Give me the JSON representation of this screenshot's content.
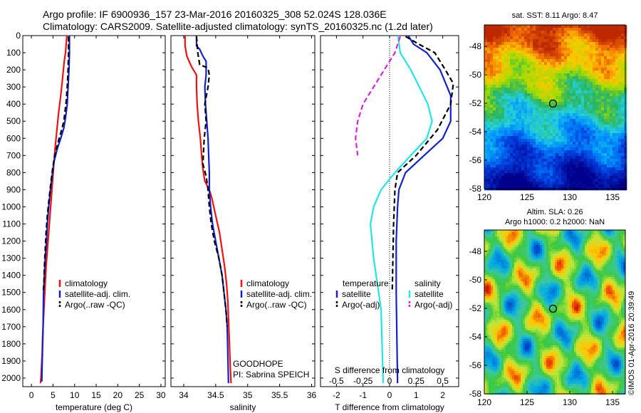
{
  "header": {
    "title_line1": "Argo profile: IF 6900936_157 23-Mar-2016 20160325_308 52.024S 128.036E",
    "title_line2": "Climatology: CARS2009. Satellite-adjusted climatology: synTS_20160325.nc (1.2d later)"
  },
  "colors": {
    "climatology": "#ee1111",
    "satellite": "#1122cc",
    "argo": "#000000",
    "sat_salinity": "#22e5e5",
    "argo_salinity": "#dd22dd"
  },
  "chart_data": [
    {
      "type": "line",
      "panel": "temperature",
      "xlabel": "temperature (deg C)",
      "ylabel": "",
      "xlim": [
        -2,
        31
      ],
      "ylim": [
        2050,
        0
      ],
      "xticks": [
        0,
        5,
        10,
        15,
        20,
        25,
        30
      ],
      "yticks": [
        0,
        100,
        200,
        300,
        400,
        500,
        600,
        700,
        800,
        900,
        1000,
        1100,
        1200,
        1300,
        1400,
        1500,
        1600,
        1700,
        1800,
        1900,
        2000
      ],
      "legend": [
        "climatology",
        "satellite-adj. clim.",
        "Argo(..raw -QC)"
      ],
      "legend_placement": "lower-right",
      "series": [
        {
          "name": "climatology",
          "style": "solid",
          "x": [
            8.2,
            7.9,
            7.6,
            7.2,
            6.8,
            6.3,
            5.9,
            5.5,
            5.2,
            4.9,
            4.6,
            4.3,
            4.0,
            3.7,
            3.4,
            3.2,
            3.0,
            2.8,
            2.6,
            2.5,
            2.4,
            2.3,
            2.2,
            2.1
          ],
          "y": [
            0,
            100,
            150,
            250,
            350,
            450,
            550,
            650,
            750,
            850,
            950,
            1050,
            1150,
            1250,
            1350,
            1450,
            1550,
            1650,
            1750,
            1850,
            1900,
            1950,
            2000,
            2030
          ]
        },
        {
          "name": "satellite",
          "style": "solid",
          "x": [
            8.8,
            8.8,
            8.7,
            8.5,
            8.3,
            7.9,
            7.5,
            6.8,
            6.0,
            5.2,
            4.8,
            4.4,
            4.0,
            3.7,
            3.5,
            3.2,
            3.0,
            2.8,
            2.7,
            2.5,
            2.4
          ],
          "y": [
            0,
            100,
            200,
            300,
            400,
            480,
            540,
            600,
            660,
            740,
            820,
            900,
            1000,
            1100,
            1200,
            1300,
            1400,
            1500,
            1700,
            1900,
            2020
          ]
        },
        {
          "name": "Argo",
          "style": "dashed",
          "x": [
            8.6,
            8.6,
            8.5,
            8.3,
            8.0,
            7.5,
            6.9,
            6.2,
            5.4,
            4.9,
            4.5,
            4.1,
            3.7,
            3.4,
            3.2,
            3.0,
            2.9,
            2.7
          ],
          "y": [
            5,
            100,
            200,
            300,
            400,
            500,
            560,
            620,
            700,
            780,
            860,
            950,
            1050,
            1150,
            1250,
            1350,
            1450,
            1500
          ]
        }
      ]
    },
    {
      "type": "line",
      "panel": "salinity",
      "xlabel": "salinity",
      "ylabel": "",
      "xlim": [
        33.8,
        36.05
      ],
      "ylim": [
        2050,
        0
      ],
      "xticks": [
        34,
        34.5,
        35,
        35.5,
        36
      ],
      "legend": [
        "climatology",
        "satellite-adj. clim.",
        "Argo(..raw -QC)"
      ],
      "legend_placement": "lower-right",
      "annotations": [
        "GOODHOPE",
        "PI: Sabrina SPEICH"
      ],
      "series": [
        {
          "name": "climatology",
          "style": "solid",
          "x": [
            34.02,
            34.02,
            34.05,
            34.12,
            34.2,
            34.2,
            34.21,
            34.23,
            34.26,
            34.28,
            34.3,
            34.33,
            34.4,
            34.44,
            34.5,
            34.56,
            34.6,
            34.64,
            34.67,
            34.69,
            34.7,
            34.71,
            34.72,
            34.73,
            34.74
          ],
          "y": [
            0,
            60,
            120,
            180,
            230,
            300,
            400,
            500,
            600,
            700,
            780,
            850,
            900,
            950,
            1050,
            1150,
            1250,
            1350,
            1450,
            1550,
            1650,
            1750,
            1850,
            1950,
            2030
          ]
        },
        {
          "name": "satellite",
          "style": "solid",
          "x": [
            34.2,
            34.2,
            34.25,
            34.3,
            34.35,
            34.35,
            34.33,
            34.34,
            34.36,
            34.38,
            34.39,
            34.4,
            34.4,
            34.42,
            34.45,
            34.5,
            34.55,
            34.6,
            34.63,
            34.66,
            34.68,
            34.7
          ],
          "y": [
            0,
            60,
            80,
            120,
            150,
            230,
            300,
            400,
            500,
            600,
            700,
            800,
            900,
            1000,
            1100,
            1200,
            1300,
            1400,
            1500,
            1600,
            1700,
            2030
          ]
        },
        {
          "name": "Argo",
          "style": "dashed",
          "x": [
            34.2,
            34.22,
            34.25,
            34.32,
            34.38,
            34.4,
            34.38,
            34.33,
            34.35,
            34.32,
            34.3,
            34.35,
            34.38,
            34.4,
            34.43,
            34.48,
            34.55,
            34.6,
            34.63,
            34.66,
            34.68
          ],
          "y": [
            5,
            100,
            170,
            180,
            190,
            230,
            300,
            400,
            500,
            600,
            750,
            820,
            900,
            1000,
            1100,
            1200,
            1300,
            1400,
            1500,
            1600,
            1700
          ]
        }
      ]
    },
    {
      "type": "line",
      "panel": "difference",
      "xlabel": "T difference from climatology",
      "xlabel_top": "S difference from climatology",
      "xlim": [
        -2.6,
        2.6
      ],
      "ylim": [
        2050,
        0
      ],
      "xticks": [
        -2,
        -1,
        0,
        1,
        2
      ],
      "xticks_s": [
        -0.5,
        -0.25,
        0,
        0.25,
        0.5
      ],
      "legend_temperature": [
        "temperature",
        "satellite",
        "Argo(-adj)"
      ],
      "legend_salinity": [
        "salinity",
        "satellite",
        "Argo(-adj)"
      ],
      "legend_placement": "lower-center",
      "series": [
        {
          "name": "T satellite",
          "style": "solid",
          "variable": "T",
          "x": [
            0.7,
            0.9,
            1.4,
            1.9,
            2.3,
            2.3,
            2.0,
            1.3,
            0.6,
            0.35,
            0.3,
            0.25,
            0.25,
            0.3
          ],
          "y": [
            0,
            50,
            100,
            200,
            350,
            500,
            600,
            700,
            800,
            900,
            1000,
            1200,
            1500,
            2030
          ]
        },
        {
          "name": "T Argo(-adj)",
          "style": "dashed",
          "variable": "T",
          "x": [
            0.6,
            1.1,
            1.7,
            2.1,
            2.4,
            2.3,
            1.8,
            1.0,
            0.3,
            0.2,
            0.15,
            0.1
          ],
          "y": [
            5,
            50,
            100,
            200,
            280,
            400,
            550,
            700,
            800,
            900,
            1100,
            1500
          ]
        },
        {
          "name": "S satellite",
          "style": "solid",
          "variable": "S",
          "x": [
            0.08,
            0.1,
            0.2,
            0.28,
            0.36,
            0.4,
            0.35,
            0.2,
            0.05,
            -0.08,
            -0.15,
            -0.18,
            -0.15,
            -0.08,
            -0.06
          ],
          "y": [
            0,
            100,
            200,
            300,
            400,
            500,
            600,
            700,
            800,
            900,
            1000,
            1100,
            1300,
            1600,
            2030
          ]
        },
        {
          "name": "S Argo(-adj)",
          "style": "dashed",
          "variable": "S",
          "x": [
            0.1,
            0.05,
            -0.05,
            -0.15,
            -0.25,
            -0.3,
            -0.32,
            -0.3
          ],
          "y": [
            5,
            100,
            200,
            300,
            400,
            500,
            600,
            700
          ]
        }
      ]
    },
    {
      "type": "heatmap",
      "panel": "sst_map",
      "title": "sat. SST: 8.11  Argo: 8.47",
      "xlim": [
        120,
        136.5
      ],
      "ylim": [
        -58,
        -46.5
      ],
      "xticks": [
        120,
        125,
        130,
        135
      ],
      "yticks": [
        -48,
        -50,
        -52,
        -54,
        -56,
        -58
      ],
      "marker": {
        "lon": 128.036,
        "lat": -52.024
      }
    },
    {
      "type": "heatmap",
      "panel": "sla_map",
      "title": "Altim. SLA: 0.26",
      "subtitle": "Argo h1000: 0.2 h2000: NaN",
      "xlim": [
        120,
        136.5
      ],
      "ylim": [
        -58,
        -46.5
      ],
      "xticks": [
        120,
        125,
        130,
        135
      ],
      "yticks": [
        -48,
        -50,
        -52,
        -54,
        -56,
        -58
      ],
      "marker": {
        "lon": 128.036,
        "lat": -52.024
      }
    }
  ],
  "side_label": "©IMOS 01-Apr-2016 20:39:49"
}
